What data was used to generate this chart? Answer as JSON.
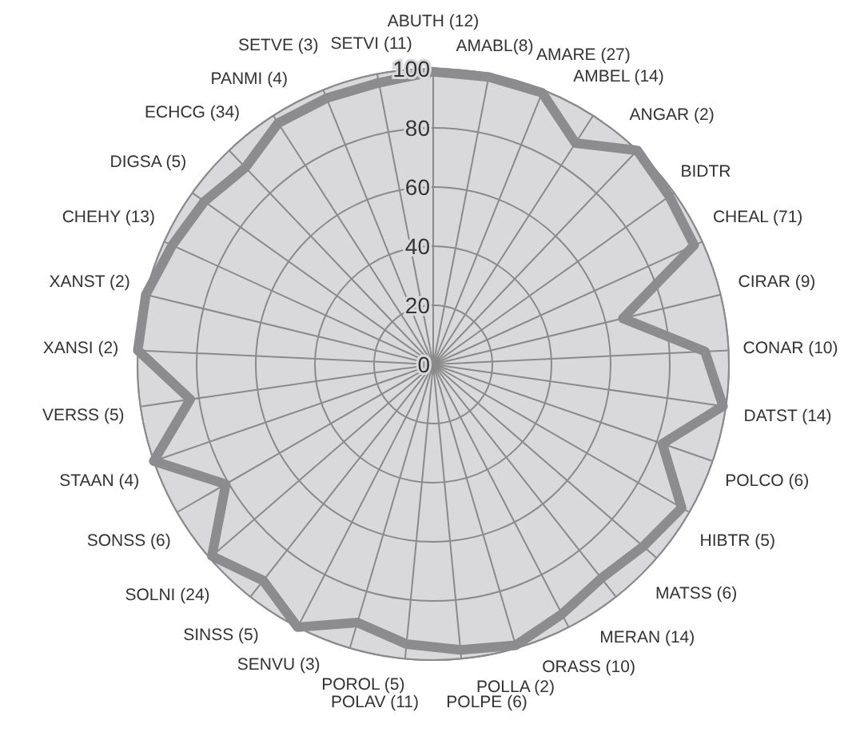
{
  "chart_data": {
    "type": "radar",
    "categories": [
      "ABUTH (12)",
      "AMABL(8)",
      "AMARE (27)",
      "AMBEL (14)",
      "ANGAR (2)",
      "BIDTR",
      "CHEAL (71)",
      "CIRAR (9)",
      "CONAR (10)",
      "DATST (14)",
      "POLCO (6)",
      "HIBTR (5)",
      "MATSS (6)",
      "MERAN (14)",
      "ORASS (10)",
      "POLLA (2)",
      "POLPE (6)",
      "POLAV (11)",
      "POROL (5)",
      "SENVU (3)",
      "SINSS (5)",
      "SOLNI (24)",
      "SONSS (6)",
      "STAAN (4)",
      "VERSS (5)",
      "XANSI (2)",
      "XANST (2)",
      "CHEHY (13)",
      "DIGSA (5)",
      "ECHCG (34)",
      "PANMI (4)",
      "SETVE (3)",
      "SETVI (11)"
    ],
    "series": [
      {
        "color": "#8c8c8e",
        "values": [
          99,
          99,
          99,
          89,
          100,
          98,
          97,
          66,
          92,
          99,
          82,
          97,
          94,
          92,
          95,
          99,
          97,
          95,
          91,
          100,
          93,
          99,
          81,
          100,
          83,
          100,
          100,
          97,
          95,
          92,
          97,
          97,
          97
        ]
      }
    ],
    "ylim": [
      0,
      100
    ],
    "yticks": [
      0,
      20,
      40,
      60,
      80,
      100
    ],
    "grid": true,
    "marker": "none",
    "line_style": "solid",
    "legend": false
  }
}
